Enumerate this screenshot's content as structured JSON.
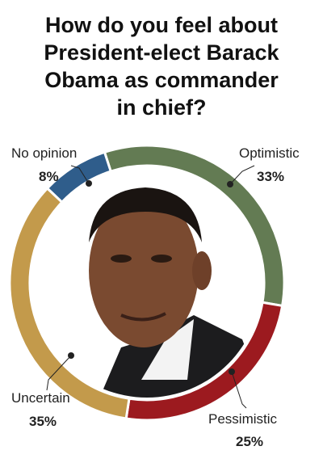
{
  "chart_data": {
    "type": "donut",
    "title": "How do you feel about President-elect Barack Obama as commander in chief?",
    "categories": [
      "Optimistic",
      "Pessimistic",
      "Uncertain",
      "No opinion"
    ],
    "values": [
      33,
      25,
      35,
      8
    ],
    "value_labels": [
      "33%",
      "25%",
      "35%",
      "8%"
    ],
    "colors": [
      "#637b53",
      "#9c1a1f",
      "#c39a4b",
      "#2f5d8b"
    ]
  }
}
